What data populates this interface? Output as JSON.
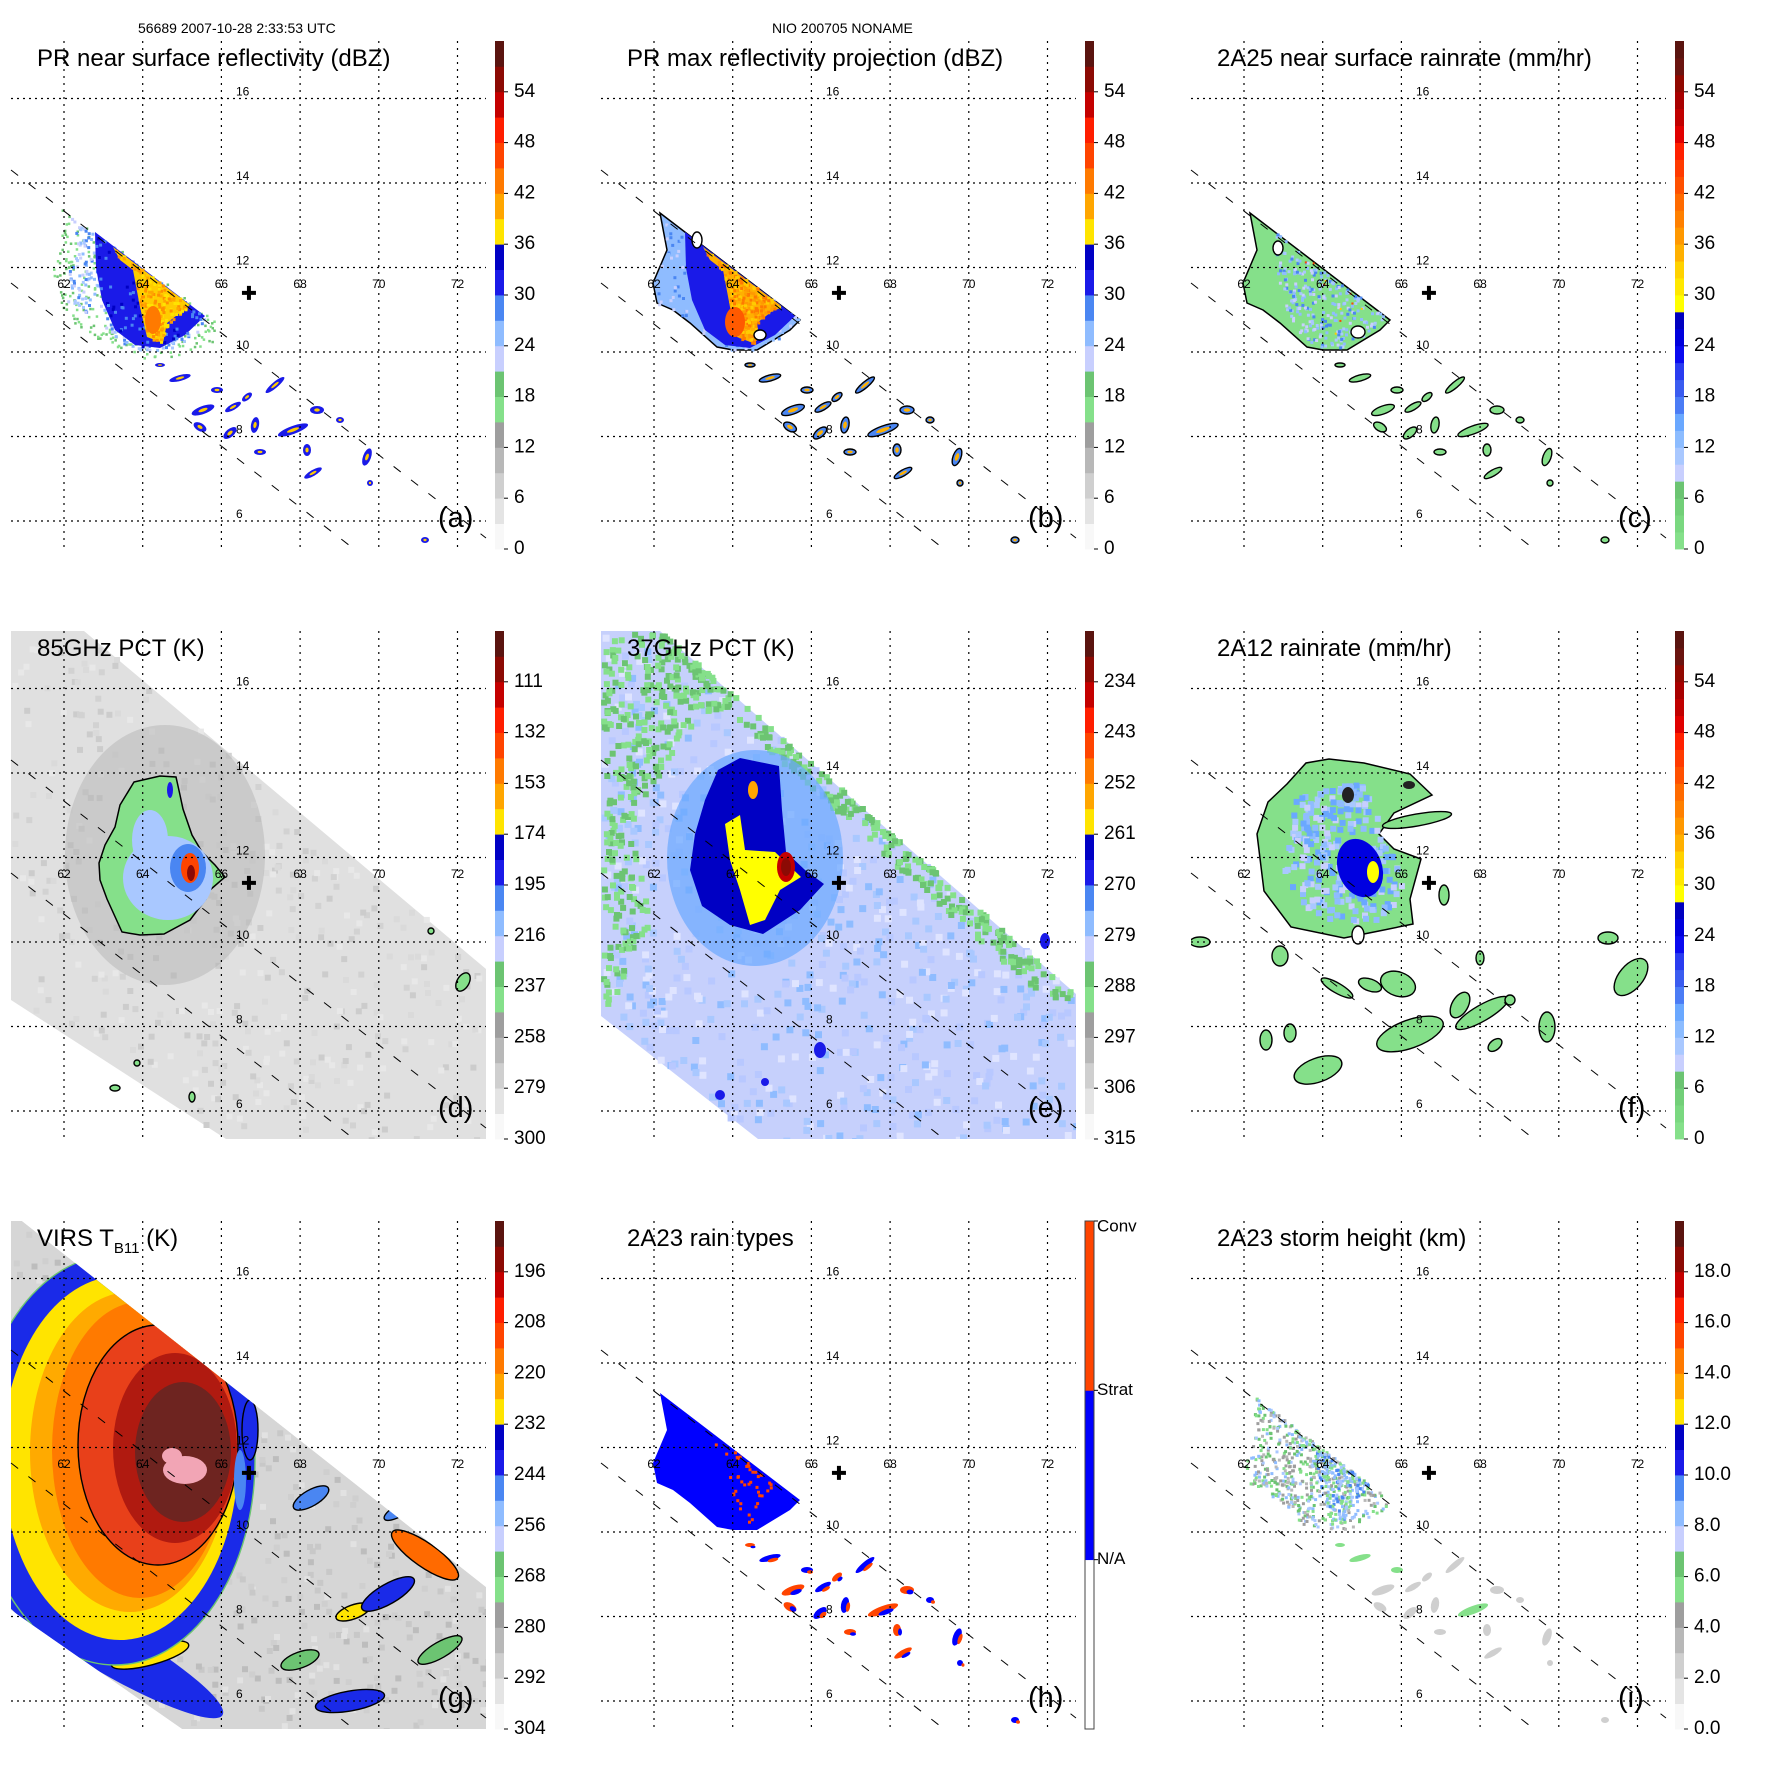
{
  "header": {
    "orbit_time": "56689 2007-10-28 2:33:53 UTC",
    "storm": "NIO 200705 NONAME"
  },
  "axes": {
    "lon_ticks": [
      "62",
      "64",
      "66",
      "68",
      "70",
      "72"
    ],
    "lat_ticks": [
      "16",
      "14",
      "12",
      "10",
      "8",
      "6"
    ]
  },
  "storm_center": {
    "lon": 66.7,
    "lat": 11.4
  },
  "palettes": {
    "std": [
      "#f8f8f8",
      "#e4e4e4",
      "#cfcfcf",
      "#b8b8b8",
      "#9e9e9e",
      "#85e08a",
      "#6cc472",
      "#c8cffe",
      "#8fbcff",
      "#4a86f2",
      "#1a1ae8",
      "#0000c4",
      "#ffe400",
      "#ffa600",
      "#ff7a00",
      "#ff4400",
      "#ff1e00",
      "#c40000",
      "#8c0a04",
      "#5a1410"
    ],
    "rain": [
      "#85e08a",
      "#7ad880",
      "#72cf78",
      "#6cc472",
      "#c8cffe",
      "#a9c8ff",
      "#8cbcff",
      "#6aa8ff",
      "#4b7cf5",
      "#3a5cf0",
      "#2a3cf0",
      "#0a0af0",
      "#0000dd",
      "#0000c0",
      "#ffff00",
      "#ffe800",
      "#ffd200",
      "#ffb000",
      "#ff9800",
      "#ff8000",
      "#ff6a00",
      "#ff5000",
      "#ff3a00",
      "#ff2000",
      "#e00000",
      "#c00000",
      "#a80000",
      "#900800",
      "#6a1410",
      "#5a1410"
    ],
    "types": [
      "#ffffff",
      "#0000ff",
      "#ff4400"
    ]
  },
  "chart_data": [
    {
      "type": "heatmap",
      "panel_label": "(a)",
      "title": "PR near surface reflectivity (dBZ)",
      "units": "dBZ",
      "range": [
        0,
        60
      ],
      "colorbar": {
        "palette": "std",
        "ticks": [
          "0",
          "6",
          "12",
          "18",
          "24",
          "30",
          "36",
          "42",
          "48",
          "54"
        ]
      }
    },
    {
      "type": "heatmap",
      "panel_label": "(b)",
      "title": "PR max reflectivity projection (dBZ)",
      "units": "dBZ",
      "range": [
        0,
        60
      ],
      "colorbar": {
        "palette": "std",
        "ticks": [
          "0",
          "6",
          "12",
          "18",
          "24",
          "30",
          "36",
          "42",
          "48",
          "54"
        ]
      }
    },
    {
      "type": "heatmap",
      "panel_label": "(c)",
      "title": "2A25 near surface rainrate (mm/hr)",
      "units": "mm/hr",
      "range": [
        0,
        60
      ],
      "colorbar": {
        "palette": "rain",
        "ticks": [
          "0",
          "6",
          "12",
          "18",
          "24",
          "30",
          "36",
          "42",
          "48",
          "54"
        ]
      }
    },
    {
      "type": "heatmap",
      "panel_label": "(d)",
      "title": "85GHz PCT (K)",
      "units": "K",
      "range": [
        300,
        90
      ],
      "colorbar": {
        "palette": "std",
        "ticks": [
          "300",
          "279",
          "258",
          "237",
          "216",
          "195",
          "174",
          "153",
          "132",
          "111"
        ]
      }
    },
    {
      "type": "heatmap",
      "panel_label": "(e)",
      "title": "37GHz PCT (K)",
      "units": "K",
      "range": [
        315,
        225
      ],
      "colorbar": {
        "palette": "std",
        "ticks": [
          "315",
          "306",
          "297",
          "288",
          "279",
          "270",
          "261",
          "252",
          "243",
          "234"
        ]
      }
    },
    {
      "type": "heatmap",
      "panel_label": "(f)",
      "title": "2A12 rainrate (mm/hr)",
      "units": "mm/hr",
      "range": [
        0,
        60
      ],
      "colorbar": {
        "palette": "rain",
        "ticks": [
          "0",
          "6",
          "12",
          "18",
          "24",
          "30",
          "36",
          "42",
          "48",
          "54"
        ]
      }
    },
    {
      "type": "heatmap",
      "panel_label": "(g)",
      "title": "VIRS T",
      "title_sub": "B11",
      "title_suffix": " (K)",
      "units": "K",
      "range": [
        304,
        184
      ],
      "colorbar": {
        "palette": "std",
        "ticks": [
          "304",
          "292",
          "280",
          "268",
          "256",
          "244",
          "232",
          "220",
          "208",
          "196"
        ]
      }
    },
    {
      "type": "heatmap",
      "panel_label": "(h)",
      "title": "2A23 rain types",
      "units": "category",
      "colorbar": {
        "palette": "types",
        "categorical": true,
        "ticks": [
          "N/A",
          "Strat",
          "Conv"
        ]
      }
    },
    {
      "type": "heatmap",
      "panel_label": "(i)",
      "title": "2A23 storm height (km)",
      "units": "km",
      "range": [
        0,
        20
      ],
      "colorbar": {
        "palette": "std",
        "ticks": [
          "0.0",
          "2.0",
          "4.0",
          "6.0",
          "8.0",
          "10.0",
          "12.0",
          "14.0",
          "16.0",
          "18.0"
        ]
      }
    }
  ]
}
